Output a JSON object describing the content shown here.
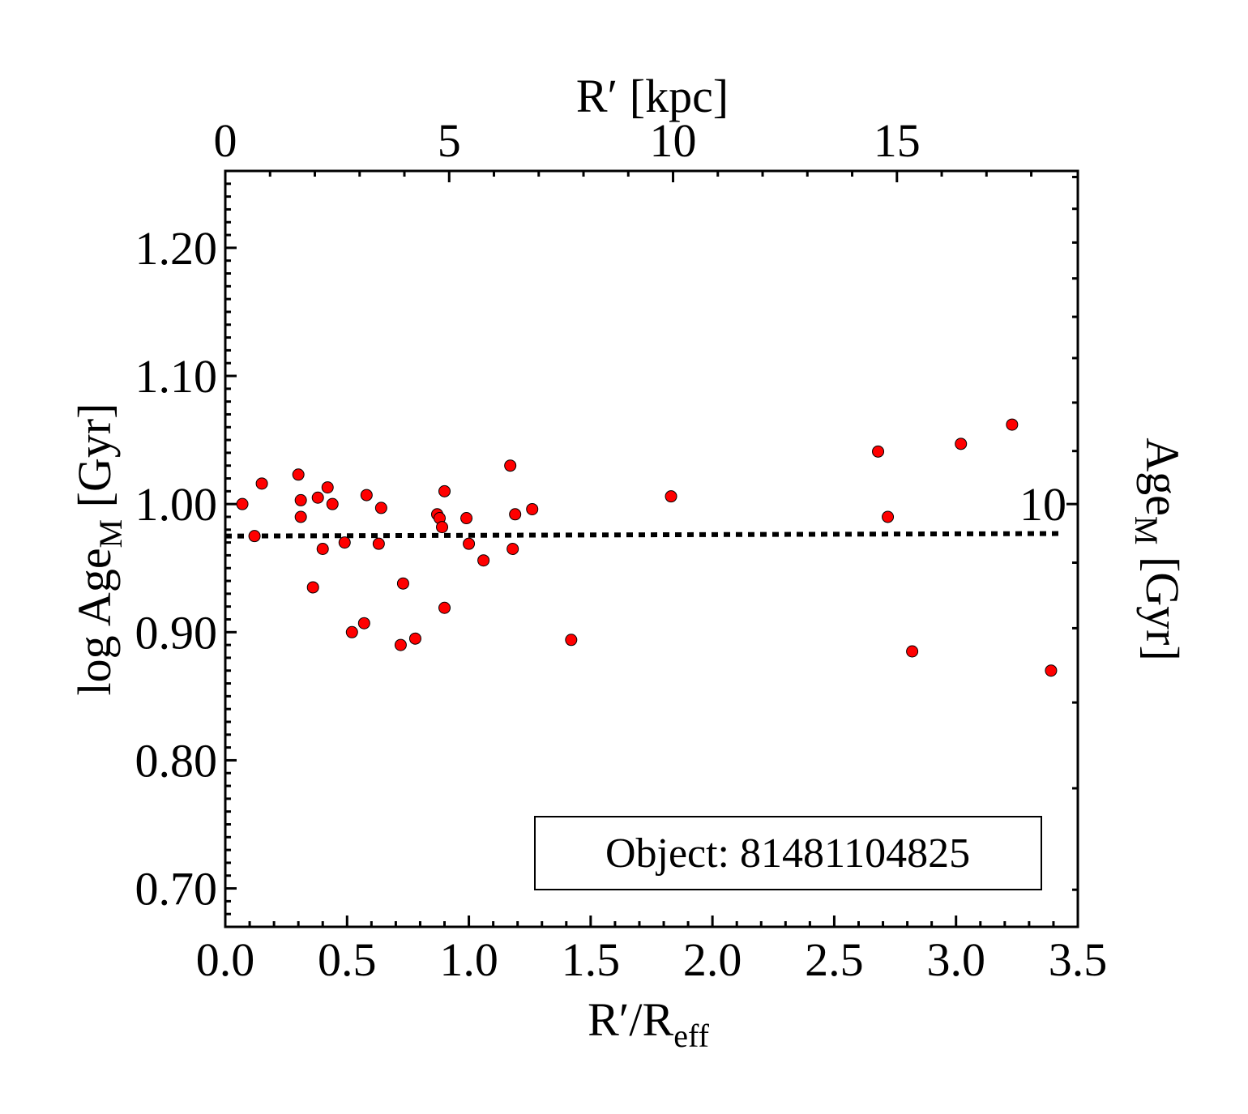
{
  "chart_data": {
    "type": "scatter",
    "xlabel": {
      "main": "R′/R",
      "sub": "eff"
    },
    "ylabel": {
      "main": "log Age",
      "sub": "M",
      "unit": " [Gyr]"
    },
    "top_xlabel": "R′ [kpc]",
    "right_ylabel": {
      "main": "Age",
      "sub": "M",
      "unit": " [Gyr]"
    },
    "xlim": [
      0.0,
      3.5
    ],
    "ylim": [
      0.67,
      1.26
    ],
    "xticks": [
      "0.0",
      "0.5",
      "1.0",
      "1.5",
      "2.0",
      "2.5",
      "3.0",
      "3.5"
    ],
    "yticks": [
      "0.70",
      "0.80",
      "0.90",
      "1.00",
      "1.10",
      "1.20"
    ],
    "top_xticks": [
      "0",
      "5",
      "10",
      "15"
    ],
    "top_xtick_kpc": [
      0,
      5,
      10,
      15
    ],
    "kpc_per_reff": 5.44,
    "right_yticks": [
      "10"
    ],
    "annotation": "Object: 81481104825",
    "series": [
      {
        "marker_color": "#ff0000",
        "points": [
          [
            0.07,
            1.0
          ],
          [
            0.12,
            0.975
          ],
          [
            0.15,
            1.016
          ],
          [
            0.3,
            1.023
          ],
          [
            0.31,
            1.003
          ],
          [
            0.31,
            0.99
          ],
          [
            0.36,
            0.935
          ],
          [
            0.38,
            1.005
          ],
          [
            0.4,
            0.965
          ],
          [
            0.42,
            1.013
          ],
          [
            0.44,
            1.0
          ],
          [
            0.49,
            0.97
          ],
          [
            0.52,
            0.9
          ],
          [
            0.57,
            0.907
          ],
          [
            0.58,
            1.007
          ],
          [
            0.63,
            0.969
          ],
          [
            0.64,
            0.997
          ],
          [
            0.72,
            0.89
          ],
          [
            0.73,
            0.938
          ],
          [
            0.78,
            0.895
          ],
          [
            0.87,
            0.992
          ],
          [
            0.88,
            0.989
          ],
          [
            0.89,
            0.982
          ],
          [
            0.9,
            0.919
          ],
          [
            0.9,
            1.01
          ],
          [
            0.99,
            0.989
          ],
          [
            1.0,
            0.969
          ],
          [
            1.06,
            0.956
          ],
          [
            1.17,
            1.03
          ],
          [
            1.18,
            0.965
          ],
          [
            1.19,
            0.992
          ],
          [
            1.26,
            0.996
          ],
          [
            1.42,
            0.894
          ],
          [
            1.83,
            1.006
          ],
          [
            2.68,
            1.041
          ],
          [
            2.72,
            0.99
          ],
          [
            2.82,
            0.885
          ],
          [
            3.02,
            1.047
          ],
          [
            3.23,
            1.062
          ],
          [
            3.39,
            0.87
          ]
        ]
      },
      {
        "line_style": "dotted",
        "points": [
          [
            0.0,
            0.975
          ],
          [
            3.44,
            0.977
          ]
        ]
      }
    ]
  }
}
